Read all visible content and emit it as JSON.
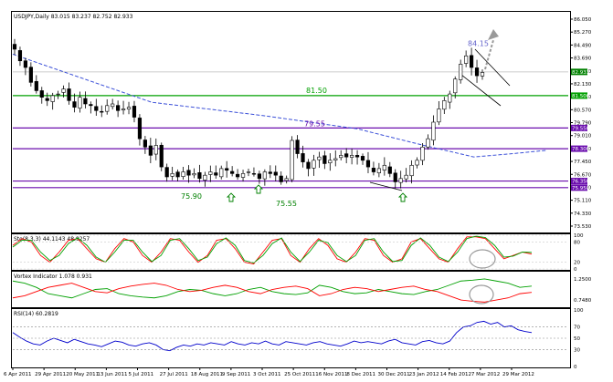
{
  "header": {
    "symbol_info": "USDJPY,Daily  83.015 83.237 82.752 82.933"
  },
  "chart_data": [
    {
      "type": "candlestick",
      "pane": "price",
      "title": "USDJPY,Daily",
      "ohlc_header": {
        "open": 83.015,
        "high": 83.237,
        "low": 82.752,
        "close": 82.933
      },
      "ylim": [
        73.3,
        86.5
      ],
      "y_ticks": [
        "86.050",
        "85.270",
        "84.490",
        "83.690",
        "82.910",
        "82.130",
        "81.350",
        "80.570",
        "79.790",
        "79.010",
        "78.230",
        "77.450",
        "76.670",
        "75.890",
        "75.110",
        "74.330",
        "73.530"
      ],
      "x_ticks": [
        "6 Apr 2011",
        "29 Apr 2011",
        "20 May 2011",
        "13 Jun 2011",
        "5 Jul 2011",
        "27 Jul 2011",
        "18 Aug 2011",
        "9 Sep 2011",
        "3 Oct 2011",
        "25 Oct 2011",
        "16 Nov 2011",
        "8 Dec 2011",
        "30 Dec 2011",
        "23 Jan 2012",
        "14 Feb 2012",
        "7 Mar 2012",
        "29 Mar 2012"
      ],
      "closes": [
        84.3,
        83.6,
        83.2,
        82.3,
        81.8,
        81.4,
        81.2,
        81.5,
        81.6,
        81.9,
        81.2,
        80.8,
        81.4,
        81.0,
        80.9,
        80.6,
        80.5,
        80.9,
        81.0,
        80.6,
        80.7,
        80.8,
        80.2,
        78.9,
        78.4,
        77.9,
        78.5,
        77.2,
        76.6,
        76.8,
        76.6,
        76.9,
        76.7,
        76.8,
        76.5,
        76.7,
        76.9,
        76.7,
        77.1,
        77.0,
        76.8,
        76.6,
        76.8,
        76.9,
        76.8,
        76.5,
        76.9,
        76.8,
        76.7,
        76.3,
        76.5,
        78.8,
        78.0,
        77.5,
        77.1,
        77.6,
        77.8,
        77.4,
        77.6,
        77.7,
        77.9,
        77.8,
        77.9,
        77.8,
        77.6,
        77.2,
        76.9,
        77.1,
        77.3,
        76.8,
        76.3,
        76.5,
        76.7,
        77.3,
        77.6,
        78.4,
        78.9,
        79.9,
        80.7,
        81.2,
        81.6,
        82.5,
        83.4,
        83.9,
        83.2,
        82.7,
        82.9
      ],
      "last_price": 82.933,
      "horizontal_lines": [
        {
          "level": 81.5,
          "color": "#00a000",
          "label": "81.50"
        },
        {
          "level": 79.55,
          "color": "#6a0dad",
          "label": "79.55"
        },
        {
          "level": 78.3,
          "color": "#6a0dad",
          "label": ""
        },
        {
          "level": 76.35,
          "color": "#6a0dad",
          "label": ""
        },
        {
          "level": 75.95,
          "color": "#6a0dad",
          "label": ""
        }
      ],
      "moving_average": [
        {
          "x": 0,
          "y": 84.0
        },
        {
          "x": 0.25,
          "y": 81.1
        },
        {
          "x": 0.45,
          "y": 80.3
        },
        {
          "x": 0.62,
          "y": 79.5
        },
        {
          "x": 0.74,
          "y": 78.5
        },
        {
          "x": 0.83,
          "y": 77.8
        },
        {
          "x": 0.9,
          "y": 78.0
        },
        {
          "x": 0.96,
          "y": 78.2
        }
      ],
      "price_labels": [
        {
          "text": "84.15",
          "at": 84.15,
          "color": "#6666cc"
        },
        {
          "text": "81.50",
          "at": 81.5,
          "color": "#00a000"
        },
        {
          "text": "79.55",
          "at": 79.55,
          "color": "#6a0dad"
        },
        {
          "text": "75.90",
          "at": 75.9,
          "color": "#008000"
        },
        {
          "text": "75.55",
          "at": 75.55,
          "color": "#008000"
        }
      ],
      "arrow_markers": [
        "up",
        "up",
        "up"
      ],
      "right_axis_markers": [
        {
          "value": "82.933",
          "color": "#008000"
        },
        {
          "value": "81.500",
          "color": "#00a000"
        },
        {
          "value": "79.550",
          "color": "#6a0dad"
        },
        {
          "value": "78.300",
          "color": "#6a0dad"
        },
        {
          "value": "76.350",
          "color": "#6a0dad"
        },
        {
          "value": "75.950",
          "color": "#6a0dad"
        }
      ]
    },
    {
      "type": "line",
      "pane": "stochastic",
      "title": "Sto(8,3,3) 44.1143 48.9257",
      "ylim": [
        0,
        100
      ],
      "y_ticks": [
        "100",
        "80",
        "20",
        "0"
      ],
      "series": [
        {
          "name": "",
          "color": "#ff0000",
          "values": [
            70,
            90,
            80,
            40,
            20,
            50,
            85,
            90,
            60,
            30,
            20,
            60,
            90,
            80,
            40,
            20,
            50,
            90,
            85,
            50,
            20,
            40,
            85,
            90,
            60,
            20,
            15,
            50,
            85,
            90,
            40,
            20,
            60,
            90,
            70,
            30,
            20,
            50,
            90,
            85,
            40,
            20,
            30,
            80,
            90,
            60,
            30,
            20,
            60,
            95,
            95,
            90,
            60,
            30,
            40,
            50,
            44
          ]
        },
        {
          "name": "",
          "color": "#00a000",
          "values": [
            65,
            85,
            85,
            50,
            25,
            40,
            75,
            92,
            70,
            35,
            20,
            50,
            85,
            85,
            50,
            22,
            40,
            85,
            90,
            60,
            25,
            35,
            75,
            92,
            70,
            25,
            18,
            40,
            75,
            92,
            50,
            22,
            50,
            85,
            78,
            40,
            22,
            40,
            85,
            90,
            50,
            22,
            25,
            70,
            92,
            70,
            35,
            22,
            50,
            90,
            97,
            93,
            70,
            35,
            38,
            50,
            49
          ]
        }
      ]
    },
    {
      "type": "line",
      "pane": "vortex",
      "title": "Vortex Indicator 1.078 0.931",
      "ylim": [
        0.6,
        1.4
      ],
      "y_ticks": [
        "1.2500",
        "0.7480"
      ],
      "series": [
        {
          "name": "",
          "color": "#00a000",
          "values": [
            1.2,
            1.15,
            1.05,
            0.9,
            0.85,
            0.8,
            0.9,
            1.0,
            1.02,
            0.9,
            0.85,
            0.82,
            0.8,
            0.85,
            0.95,
            1.0,
            0.98,
            0.9,
            0.85,
            0.9,
            1.0,
            1.05,
            0.95,
            0.9,
            0.88,
            0.92,
            1.1,
            1.05,
            0.95,
            0.9,
            0.92,
            1.0,
            0.95,
            0.9,
            0.88,
            0.95,
            1.0,
            1.1,
            1.2,
            1.22,
            1.25,
            1.2,
            1.15,
            1.05,
            1.08
          ]
        },
        {
          "name": "",
          "color": "#ff0000",
          "values": [
            0.8,
            0.85,
            0.95,
            1.05,
            1.1,
            1.15,
            1.05,
            0.95,
            0.92,
            1.02,
            1.08,
            1.12,
            1.15,
            1.1,
            1.0,
            0.95,
            0.98,
            1.05,
            1.1,
            1.05,
            0.95,
            0.9,
            1.0,
            1.05,
            1.08,
            1.02,
            0.85,
            0.9,
            1.0,
            1.05,
            1.02,
            0.95,
            1.0,
            1.05,
            1.08,
            1.0,
            0.95,
            0.85,
            0.75,
            0.72,
            0.7,
            0.75,
            0.8,
            0.9,
            0.93
          ]
        }
      ]
    },
    {
      "type": "line",
      "pane": "rsi",
      "title": "RSI(14) 60.2819",
      "ylim": [
        0,
        100
      ],
      "y_ticks": [
        "100",
        "70",
        "50",
        "30",
        "0"
      ],
      "series": [
        {
          "name": "",
          "color": "#0000cc",
          "values": [
            60,
            52,
            45,
            40,
            38,
            45,
            50,
            46,
            42,
            48,
            44,
            40,
            38,
            35,
            40,
            45,
            43,
            38,
            36,
            40,
            42,
            38,
            30,
            28,
            34,
            38,
            36,
            40,
            38,
            42,
            40,
            38,
            44,
            40,
            38,
            42,
            40,
            45,
            40,
            38,
            44,
            42,
            40,
            38,
            42,
            44,
            40,
            38,
            36,
            40,
            45,
            42,
            44,
            42,
            40,
            45,
            48,
            42,
            40,
            38,
            44,
            46,
            42,
            40,
            45,
            60,
            70,
            72,
            78,
            80,
            75,
            78,
            70,
            72,
            65,
            62,
            60
          ]
        }
      ]
    }
  ],
  "x_axis_labels": [
    "6 Apr 2011",
    "29 Apr 2011",
    "20 May 2011",
    "13 Jun 2011",
    "5 Jul 2011",
    "27 Jul 2011",
    "18 Aug 2011",
    "9 Sep 2011",
    "3 Oct 2011",
    "25 Oct 2011",
    "16 Nov 2011",
    "8 Dec 2011",
    "30 Dec 2011",
    "23 Jan 2012",
    "14 Feb 2012",
    "7 Mar 2012",
    "29 Mar 2012"
  ]
}
